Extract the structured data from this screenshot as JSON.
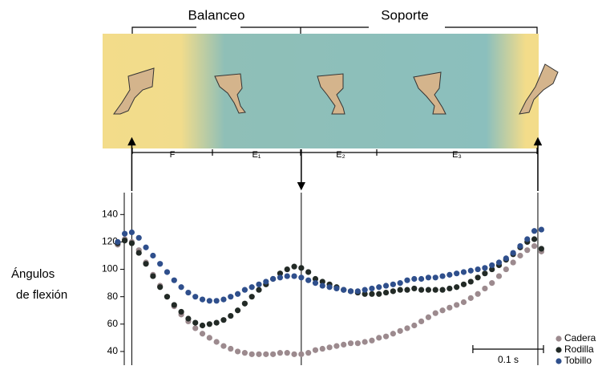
{
  "chart_data": {
    "type": "scatter",
    "phase_headers": [
      "Balanceo",
      "Soporte"
    ],
    "phases": [
      "F",
      "E₁",
      "E₂",
      "E₃"
    ],
    "ylabel": [
      "Ángulos",
      "de flexión"
    ],
    "ylim": [
      30,
      156
    ],
    "yticks": [
      40,
      60,
      80,
      100,
      120,
      140
    ],
    "xlim": [
      -0.01,
      0.62
    ],
    "phase_boundaries": [
      0.02,
      0.26,
      0.595
    ],
    "scalebar": {
      "value": 0.1,
      "label": "0.1 s"
    },
    "x": [
      0,
      0.01,
      0.02,
      0.03,
      0.04,
      0.05,
      0.06,
      0.07,
      0.08,
      0.09,
      0.1,
      0.11,
      0.12,
      0.13,
      0.14,
      0.15,
      0.16,
      0.17,
      0.18,
      0.19,
      0.2,
      0.21,
      0.22,
      0.23,
      0.24,
      0.25,
      0.26,
      0.27,
      0.28,
      0.29,
      0.3,
      0.31,
      0.32,
      0.33,
      0.34,
      0.35,
      0.36,
      0.37,
      0.38,
      0.39,
      0.4,
      0.41,
      0.42,
      0.43,
      0.44,
      0.45,
      0.46,
      0.47,
      0.48,
      0.49,
      0.5,
      0.51,
      0.52,
      0.53,
      0.54,
      0.55,
      0.56,
      0.57,
      0.58,
      0.59,
      0.6
    ],
    "series": [
      {
        "name": "Cadera",
        "color": "#9c8a8e",
        "values": [
          118,
          122,
          120,
          114,
          105,
          96,
          88,
          80,
          73,
          67,
          62,
          57,
          53,
          50,
          47,
          44,
          42,
          40,
          39,
          38,
          38,
          38,
          38,
          39,
          39,
          38,
          38,
          39,
          41,
          42,
          43,
          44,
          45,
          46,
          46,
          47,
          48,
          50,
          51,
          53,
          55,
          57,
          59,
          62,
          65,
          68,
          70,
          72,
          74,
          76,
          79,
          82,
          86,
          90,
          95,
          100,
          105,
          110,
          114,
          117,
          113
        ]
      },
      {
        "name": "Rodilla",
        "color": "#222a26",
        "values": [
          119,
          121,
          119,
          112,
          104,
          95,
          87,
          80,
          74,
          69,
          64,
          61,
          59,
          60,
          61,
          63,
          66,
          70,
          75,
          80,
          85,
          89,
          93,
          97,
          100,
          102,
          101,
          98,
          93,
          91,
          89,
          87,
          85,
          84,
          83,
          82,
          82,
          82,
          83,
          84,
          85,
          85,
          86,
          85,
          85,
          85,
          85,
          86,
          87,
          89,
          91,
          94,
          97,
          100,
          103,
          107,
          111,
          116,
          120,
          122,
          115
        ]
      },
      {
        "name": "Tobillo",
        "color": "#2f4f8c",
        "values": [
          120,
          126,
          127,
          123,
          116,
          110,
          104,
          98,
          92,
          87,
          83,
          80,
          78,
          77,
          77,
          78,
          80,
          82,
          85,
          87,
          89,
          91,
          93,
          94,
          95,
          95,
          94,
          92,
          90,
          88,
          87,
          86,
          85,
          84,
          84,
          85,
          86,
          87,
          88,
          89,
          90,
          92,
          93,
          93,
          94,
          94,
          95,
          96,
          97,
          98,
          99,
          100,
          101,
          103,
          105,
          108,
          112,
          117,
          122,
          128,
          129
        ]
      }
    ]
  }
}
